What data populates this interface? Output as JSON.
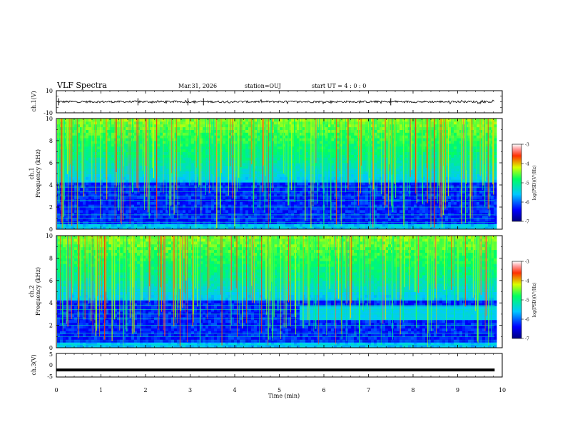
{
  "header": {
    "title": "VLF Spectra",
    "date": "Mar.31, 2026",
    "station": "station=OUJ",
    "start_ut": "start UT =  4 : 0  : 0"
  },
  "chart_data": [
    {
      "id": "ch1-waveform",
      "type": "line",
      "ylabel": "ch.1(V)",
      "ylim": [
        -10,
        10
      ],
      "yticks": [
        10,
        -10
      ],
      "x": [
        0,
        9.83
      ],
      "baseline": 0,
      "spikes_at_min": [
        0.05,
        1.83,
        2.95,
        3.3,
        7.5
      ]
    },
    {
      "id": "ch1-spectrogram",
      "type": "heatmap",
      "ylabel": "ch.1\nFrequency (kHz)",
      "ylim": [
        0,
        10
      ],
      "yticks": [
        0,
        2,
        4,
        6,
        8,
        10
      ],
      "x_range_min": [
        0,
        9.83
      ],
      "colorbar": {
        "label": "log(PSD)(V²/Hz)",
        "range": [
          -7,
          -3
        ],
        "ticks": [
          -3,
          -4,
          -5,
          -6,
          -7
        ]
      },
      "line_freqs_khz": [
        0.3,
        0.6,
        1.0,
        1.3,
        2.0,
        2.6,
        3.0,
        3.4,
        3.8,
        4.4,
        5.0
      ]
    },
    {
      "id": "ch2-spectrogram",
      "type": "heatmap",
      "ylabel": "ch.2\nFrequency (kHz)",
      "ylim": [
        0,
        10
      ],
      "yticks": [
        0,
        2,
        4,
        6,
        8,
        10
      ],
      "x_range_min": [
        0,
        9.83
      ],
      "band_shift_at_min": 5.4,
      "colorbar": {
        "label": "log(PSD)(V²/Hz)",
        "range": [
          -7,
          -3
        ],
        "ticks": [
          -3,
          -4,
          -5,
          -6,
          -7
        ]
      },
      "line_freqs_khz": [
        0.3,
        0.6,
        1.0,
        1.3,
        2.0,
        2.6,
        3.0,
        3.4,
        3.8,
        4.4,
        5.0
      ]
    },
    {
      "id": "ch3-waveform",
      "type": "line",
      "ylabel": "ch.3(V)",
      "ylim": [
        -5,
        5
      ],
      "yticks": [
        5,
        0,
        -5
      ],
      "x": [
        0,
        9.83
      ],
      "baseline": -2
    }
  ],
  "xaxis": {
    "label": "Time (min)",
    "ticks": [
      0,
      1,
      2,
      3,
      4,
      5,
      6,
      7,
      8,
      9,
      10
    ],
    "range": [
      0,
      10
    ]
  }
}
